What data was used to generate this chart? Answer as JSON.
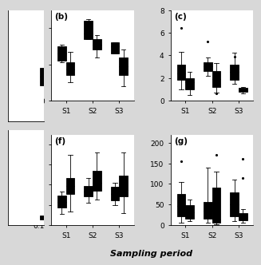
{
  "panels": [
    {
      "label": "(b)",
      "ylim": [
        0,
        25
      ],
      "yticks": [
        0,
        10,
        20
      ],
      "groups": [
        "S1",
        "S2",
        "S3"
      ],
      "white_boxes": [
        {
          "med": 13,
          "q1": 11,
          "q3": 15,
          "whislo": 10.5,
          "whishi": 15.5,
          "fliers": []
        },
        {
          "med": 18.5,
          "q1": 17,
          "q3": 22,
          "whislo": 17,
          "whishi": 22.5,
          "fliers": []
        },
        {
          "med": 15,
          "q1": 13,
          "q3": 16,
          "whislo": 13,
          "whishi": 16,
          "fliers": []
        }
      ],
      "gray_boxes": [
        {
          "med": 8.5,
          "q1": 7,
          "q3": 10.5,
          "whislo": 5,
          "whishi": 13.5,
          "fliers": []
        },
        {
          "med": 15.5,
          "q1": 14,
          "q3": 17,
          "whislo": 12,
          "whishi": 18,
          "fliers": []
        },
        {
          "med": 9.5,
          "q1": 7,
          "q3": 12,
          "whislo": 4,
          "whishi": 14,
          "fliers": []
        }
      ],
      "left_stub": {
        "med": 10,
        "q1": 8,
        "q3": 12,
        "whislo": 6,
        "whishi": 14,
        "color": "gray"
      }
    },
    {
      "label": "(c)",
      "ylim": [
        0,
        8
      ],
      "yticks": [
        0,
        2,
        4,
        6,
        8
      ],
      "groups": [
        "S1",
        "S2",
        "S3"
      ],
      "white_boxes": [
        {
          "med": 2.4,
          "q1": 1.8,
          "q3": 3.2,
          "whislo": 1.0,
          "whishi": 4.3,
          "fliers": [
            6.4
          ]
        },
        {
          "med": 3.0,
          "q1": 2.6,
          "q3": 3.4,
          "whislo": 2.2,
          "whishi": 3.8,
          "fliers": [
            5.2
          ]
        },
        {
          "med": 2.5,
          "q1": 1.8,
          "q3": 3.2,
          "whislo": 1.5,
          "whishi": 4.2,
          "fliers": [
            3.9
          ]
        }
      ],
      "gray_boxes": [
        {
          "med": 1.6,
          "q1": 1.0,
          "q3": 2.0,
          "whislo": 0.5,
          "whishi": 2.5,
          "fliers": []
        },
        {
          "med": 1.9,
          "q1": 1.2,
          "q3": 2.6,
          "whislo": 0.7,
          "whishi": 3.3,
          "fliers": [
            0.6
          ]
        },
        {
          "med": 0.9,
          "q1": 0.75,
          "q3": 1.1,
          "whislo": 0.6,
          "whishi": 1.2,
          "fliers": []
        }
      ],
      "left_stub": null
    },
    {
      "label": "(f)",
      "ylim": [
        0.1,
        0.55
      ],
      "yticks": [
        0.1,
        0.2,
        0.3,
        0.4,
        0.5
      ],
      "groups": [
        "S1",
        "S2",
        "S3"
      ],
      "white_boxes": [
        {
          "med": 0.215,
          "q1": 0.185,
          "q3": 0.245,
          "whislo": 0.155,
          "whishi": 0.265,
          "fliers": []
        },
        {
          "med": 0.265,
          "q1": 0.24,
          "q3": 0.295,
          "whislo": 0.21,
          "whishi": 0.335,
          "fliers": []
        },
        {
          "med": 0.255,
          "q1": 0.22,
          "q3": 0.29,
          "whislo": 0.2,
          "whishi": 0.31,
          "fliers": []
        }
      ],
      "gray_boxes": [
        {
          "med": 0.295,
          "q1": 0.255,
          "q3": 0.335,
          "whislo": 0.165,
          "whishi": 0.45,
          "fliers": []
        },
        {
          "med": 0.31,
          "q1": 0.27,
          "q3": 0.37,
          "whislo": 0.225,
          "whishi": 0.46,
          "fliers": []
        },
        {
          "med": 0.275,
          "q1": 0.24,
          "q3": 0.345,
          "whislo": 0.16,
          "whishi": 0.46,
          "fliers": []
        }
      ],
      "left_stub": {
        "med": 0.14,
        "q1": 0.12,
        "q3": 0.16,
        "whislo": 0.11,
        "whishi": 0.17,
        "color": "gray"
      }
    },
    {
      "label": "(g)",
      "ylim": [
        0,
        220
      ],
      "yticks": [
        0,
        50,
        100,
        150,
        200
      ],
      "groups": [
        "S1",
        "S2",
        "S3"
      ],
      "white_boxes": [
        {
          "med": 45,
          "q1": 20,
          "q3": 75,
          "whislo": 5,
          "whishi": 105,
          "fliers": [
            155
          ]
        },
        {
          "med": 35,
          "q1": 15,
          "q3": 55,
          "whislo": 5,
          "whishi": 140,
          "fliers": []
        },
        {
          "med": 50,
          "q1": 20,
          "q3": 80,
          "whislo": 8,
          "whishi": 110,
          "fliers": []
        }
      ],
      "gray_boxes": [
        {
          "med": 30,
          "q1": 15,
          "q3": 48,
          "whislo": 8,
          "whishi": 62,
          "fliers": []
        },
        {
          "med": 12,
          "q1": 5,
          "q3": 90,
          "whislo": 2,
          "whishi": 130,
          "fliers": [
            170
          ]
        },
        {
          "med": 18,
          "q1": 10,
          "q3": 28,
          "whislo": 5,
          "whishi": 38,
          "fliers": [
            115,
            160
          ]
        }
      ],
      "left_stub": null
    }
  ],
  "white_color": "#ffffff",
  "gray_color": "#808080",
  "box_width": 0.32,
  "xlabel": "Sampling period",
  "fig_facecolor": "#d8d8d8"
}
